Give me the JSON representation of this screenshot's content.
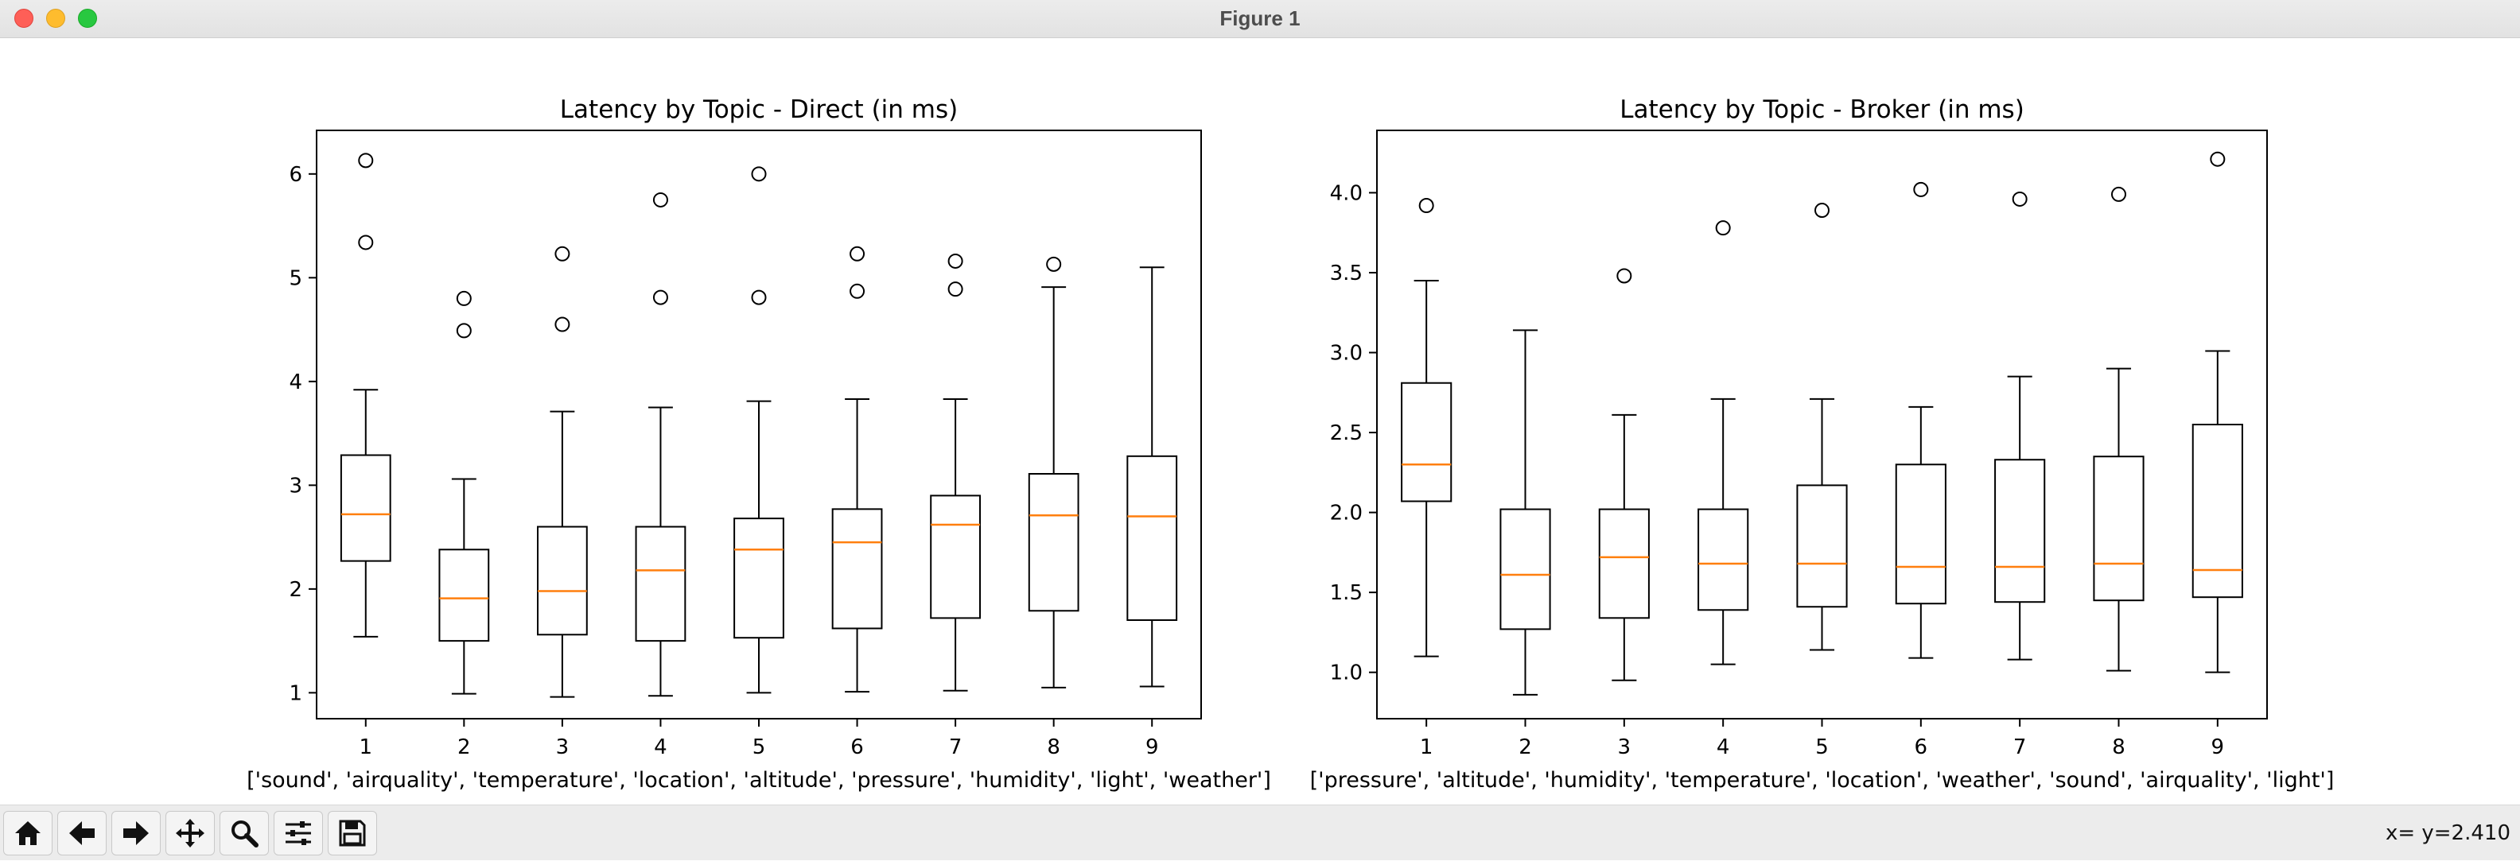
{
  "window": {
    "title": "Figure 1"
  },
  "status": {
    "coords": "x= y=2.410"
  },
  "toolbar": {
    "buttons": [
      {
        "name": "home",
        "icon": "home-icon"
      },
      {
        "name": "back",
        "icon": "arrow-left-icon"
      },
      {
        "name": "forward",
        "icon": "arrow-right-icon"
      },
      {
        "name": "pan",
        "icon": "move-icon"
      },
      {
        "name": "zoom",
        "icon": "zoom-icon"
      },
      {
        "name": "configure",
        "icon": "sliders-icon"
      },
      {
        "name": "save",
        "icon": "save-icon"
      }
    ]
  },
  "colors": {
    "median": "#ff7f0e",
    "box": "#000000"
  },
  "chart_data": [
    {
      "type": "boxplot",
      "title": "Latency by Topic - Direct (in ms)",
      "xlabel": "['sound', 'airquality', 'temperature', 'location', 'altitude', 'pressure', 'humidity', 'light', 'weather']",
      "categories": [
        "1",
        "2",
        "3",
        "4",
        "5",
        "6",
        "7",
        "8",
        "9"
      ],
      "ylim": [
        0.75,
        6.42
      ],
      "yticks": [
        1,
        2,
        3,
        4,
        5,
        6
      ],
      "ytick_labels": [
        "1",
        "2",
        "3",
        "4",
        "5",
        "6"
      ],
      "boxes": [
        {
          "whislo": 1.54,
          "q1": 2.27,
          "med": 2.72,
          "q3": 3.29,
          "whishi": 3.92,
          "fliers": [
            5.34,
            6.13
          ]
        },
        {
          "whislo": 0.99,
          "q1": 1.5,
          "med": 1.91,
          "q3": 2.38,
          "whishi": 3.06,
          "fliers": [
            4.49,
            4.8
          ]
        },
        {
          "whislo": 0.96,
          "q1": 1.56,
          "med": 1.98,
          "q3": 2.6,
          "whishi": 3.71,
          "fliers": [
            4.55,
            5.23
          ]
        },
        {
          "whislo": 0.97,
          "q1": 1.5,
          "med": 2.18,
          "q3": 2.6,
          "whishi": 3.75,
          "fliers": [
            4.81,
            5.75
          ]
        },
        {
          "whislo": 1.0,
          "q1": 1.53,
          "med": 2.38,
          "q3": 2.68,
          "whishi": 3.81,
          "fliers": [
            4.81,
            6.0
          ]
        },
        {
          "whislo": 1.01,
          "q1": 1.62,
          "med": 2.45,
          "q3": 2.77,
          "whishi": 3.83,
          "fliers": [
            4.87,
            5.23
          ]
        },
        {
          "whislo": 1.02,
          "q1": 1.72,
          "med": 2.62,
          "q3": 2.9,
          "whishi": 3.83,
          "fliers": [
            4.89,
            5.16
          ]
        },
        {
          "whislo": 1.05,
          "q1": 1.79,
          "med": 2.71,
          "q3": 3.11,
          "whishi": 4.91,
          "fliers": [
            5.13
          ]
        },
        {
          "whislo": 1.06,
          "q1": 1.7,
          "med": 2.7,
          "q3": 3.28,
          "whishi": 5.1,
          "fliers": []
        }
      ]
    },
    {
      "type": "boxplot",
      "title": "Latency by Topic - Broker (in ms)",
      "xlabel": "['pressure', 'altitude', 'humidity', 'temperature', 'location', 'weather', 'sound', 'airquality', 'light']",
      "categories": [
        "1",
        "2",
        "3",
        "4",
        "5",
        "6",
        "7",
        "8",
        "9"
      ],
      "ylim": [
        0.71,
        4.39
      ],
      "yticks": [
        1.0,
        1.5,
        2.0,
        2.5,
        3.0,
        3.5,
        4.0
      ],
      "ytick_labels": [
        "1.0",
        "1.5",
        "2.0",
        "2.5",
        "3.0",
        "3.5",
        "4.0"
      ],
      "boxes": [
        {
          "whislo": 1.1,
          "q1": 2.07,
          "med": 2.3,
          "q3": 2.81,
          "whishi": 3.45,
          "fliers": [
            3.92
          ]
        },
        {
          "whislo": 0.86,
          "q1": 1.27,
          "med": 1.61,
          "q3": 2.02,
          "whishi": 3.14,
          "fliers": []
        },
        {
          "whislo": 0.95,
          "q1": 1.34,
          "med": 1.72,
          "q3": 2.02,
          "whishi": 2.61,
          "fliers": [
            3.48
          ]
        },
        {
          "whislo": 1.05,
          "q1": 1.39,
          "med": 1.68,
          "q3": 2.02,
          "whishi": 2.71,
          "fliers": [
            3.78
          ]
        },
        {
          "whislo": 1.14,
          "q1": 1.41,
          "med": 1.68,
          "q3": 2.17,
          "whishi": 2.71,
          "fliers": [
            3.89
          ]
        },
        {
          "whislo": 1.09,
          "q1": 1.43,
          "med": 1.66,
          "q3": 2.3,
          "whishi": 2.66,
          "fliers": [
            4.02
          ]
        },
        {
          "whislo": 1.08,
          "q1": 1.44,
          "med": 1.66,
          "q3": 2.33,
          "whishi": 2.85,
          "fliers": [
            3.96
          ]
        },
        {
          "whislo": 1.01,
          "q1": 1.45,
          "med": 1.68,
          "q3": 2.35,
          "whishi": 2.9,
          "fliers": [
            3.99
          ]
        },
        {
          "whislo": 1.0,
          "q1": 1.47,
          "med": 1.64,
          "q3": 2.55,
          "whishi": 3.01,
          "fliers": [
            4.21
          ]
        }
      ]
    }
  ]
}
